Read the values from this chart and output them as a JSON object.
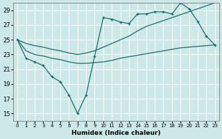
{
  "xlabel": "Humidex (Indice chaleur)",
  "bg_color": "#cce8e8",
  "grid_color": "#ffffff",
  "line_color": "#1a6b6b",
  "xlim": [
    -0.5,
    23.5
  ],
  "ylim": [
    14,
    30
  ],
  "xticks": [
    0,
    1,
    2,
    3,
    4,
    5,
    6,
    7,
    8,
    9,
    10,
    11,
    12,
    13,
    14,
    15,
    16,
    17,
    18,
    19,
    20,
    21,
    22,
    23
  ],
  "yticks": [
    15,
    17,
    19,
    21,
    23,
    25,
    27,
    29
  ],
  "line1_x": [
    0,
    1,
    2,
    3,
    4,
    5,
    6,
    7,
    8,
    9,
    10,
    11,
    12,
    13,
    14,
    15,
    16,
    17,
    18,
    19,
    20,
    21,
    22,
    23
  ],
  "line1_y": [
    25.0,
    22.5,
    22.0,
    21.5,
    20.0,
    19.3,
    17.5,
    15.0,
    17.5,
    22.8,
    28.0,
    27.8,
    27.4,
    27.2,
    28.5,
    28.5,
    28.8,
    28.8,
    28.5,
    30.0,
    29.2,
    27.5,
    25.5,
    24.3
  ],
  "line2_x": [
    0,
    1,
    2,
    3,
    4,
    5,
    6,
    7,
    8,
    9,
    10,
    11,
    12,
    13,
    14,
    15,
    16,
    17,
    18,
    19,
    20,
    21,
    22,
    23
  ],
  "line2_y": [
    25.0,
    24.5,
    24.2,
    24.0,
    23.7,
    23.5,
    23.2,
    23.0,
    23.2,
    23.5,
    24.0,
    24.5,
    25.0,
    25.5,
    26.2,
    26.8,
    27.2,
    27.6,
    28.0,
    28.4,
    28.8,
    29.2,
    29.6,
    30.0
  ],
  "line3_x": [
    0,
    1,
    2,
    3,
    4,
    5,
    6,
    7,
    8,
    9,
    10,
    11,
    12,
    13,
    14,
    15,
    16,
    17,
    18,
    19,
    20,
    21,
    22,
    23
  ],
  "line3_y": [
    25.0,
    23.5,
    23.0,
    22.8,
    22.5,
    22.3,
    22.0,
    21.8,
    21.8,
    21.9,
    22.0,
    22.2,
    22.5,
    22.7,
    22.9,
    23.1,
    23.3,
    23.5,
    23.7,
    23.9,
    24.0,
    24.1,
    24.2,
    24.3
  ]
}
